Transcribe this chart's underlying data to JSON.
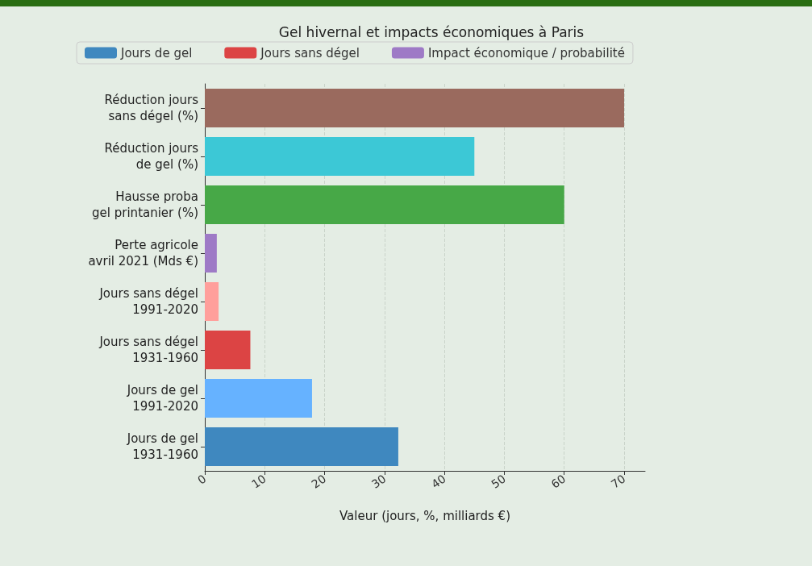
{
  "chart_data": {
    "type": "bar",
    "orientation": "horizontal",
    "stacked": true,
    "title": "Gel hivernal et impacts économiques à Paris",
    "xlabel": "Valeur (jours, %, milliards €)",
    "categories": [
      "Réduction jours\nsans dégel (%)",
      "Réduction jours\nde gel (%)",
      "Hausse proba\ngel printanier (%)",
      "Perte agricole\navril 2021 (Mds €)",
      "Jours sans dégel\n1991-2020",
      "Jours sans dégel\n1931-1960",
      "Jours de gel\n1991-2020",
      "Jours de gel\n1931-1960"
    ],
    "series": [
      {
        "name": "Jours de gel",
        "color": "#3f88bf",
        "values": [
          null,
          null,
          null,
          null,
          null,
          null,
          17.9,
          32.3
        ],
        "colors": [
          null,
          null,
          null,
          null,
          null,
          null,
          "#66b2ff",
          "#3f88bf"
        ]
      },
      {
        "name": "Jours sans dégel",
        "color": "#dc4444",
        "values": [
          null,
          null,
          null,
          null,
          2.3,
          7.6,
          null,
          null
        ],
        "colors": [
          null,
          null,
          null,
          null,
          "#ff9f9b",
          "#dc4444",
          null,
          null
        ]
      },
      {
        "name": "Impact économique / probabilité",
        "color": "#9e7ac6",
        "values": [
          70,
          45,
          60,
          2.0,
          null,
          null,
          null,
          null
        ],
        "colors": [
          "#9a6a5e",
          "#3cc8d6",
          "#47a847",
          "#9e7ac6",
          null,
          null,
          null,
          null
        ]
      }
    ],
    "xlim": [
      0,
      73.5
    ],
    "xticks": [
      0,
      10,
      20,
      30,
      40,
      50,
      60,
      70
    ],
    "grid": "x",
    "legend": "top"
  }
}
